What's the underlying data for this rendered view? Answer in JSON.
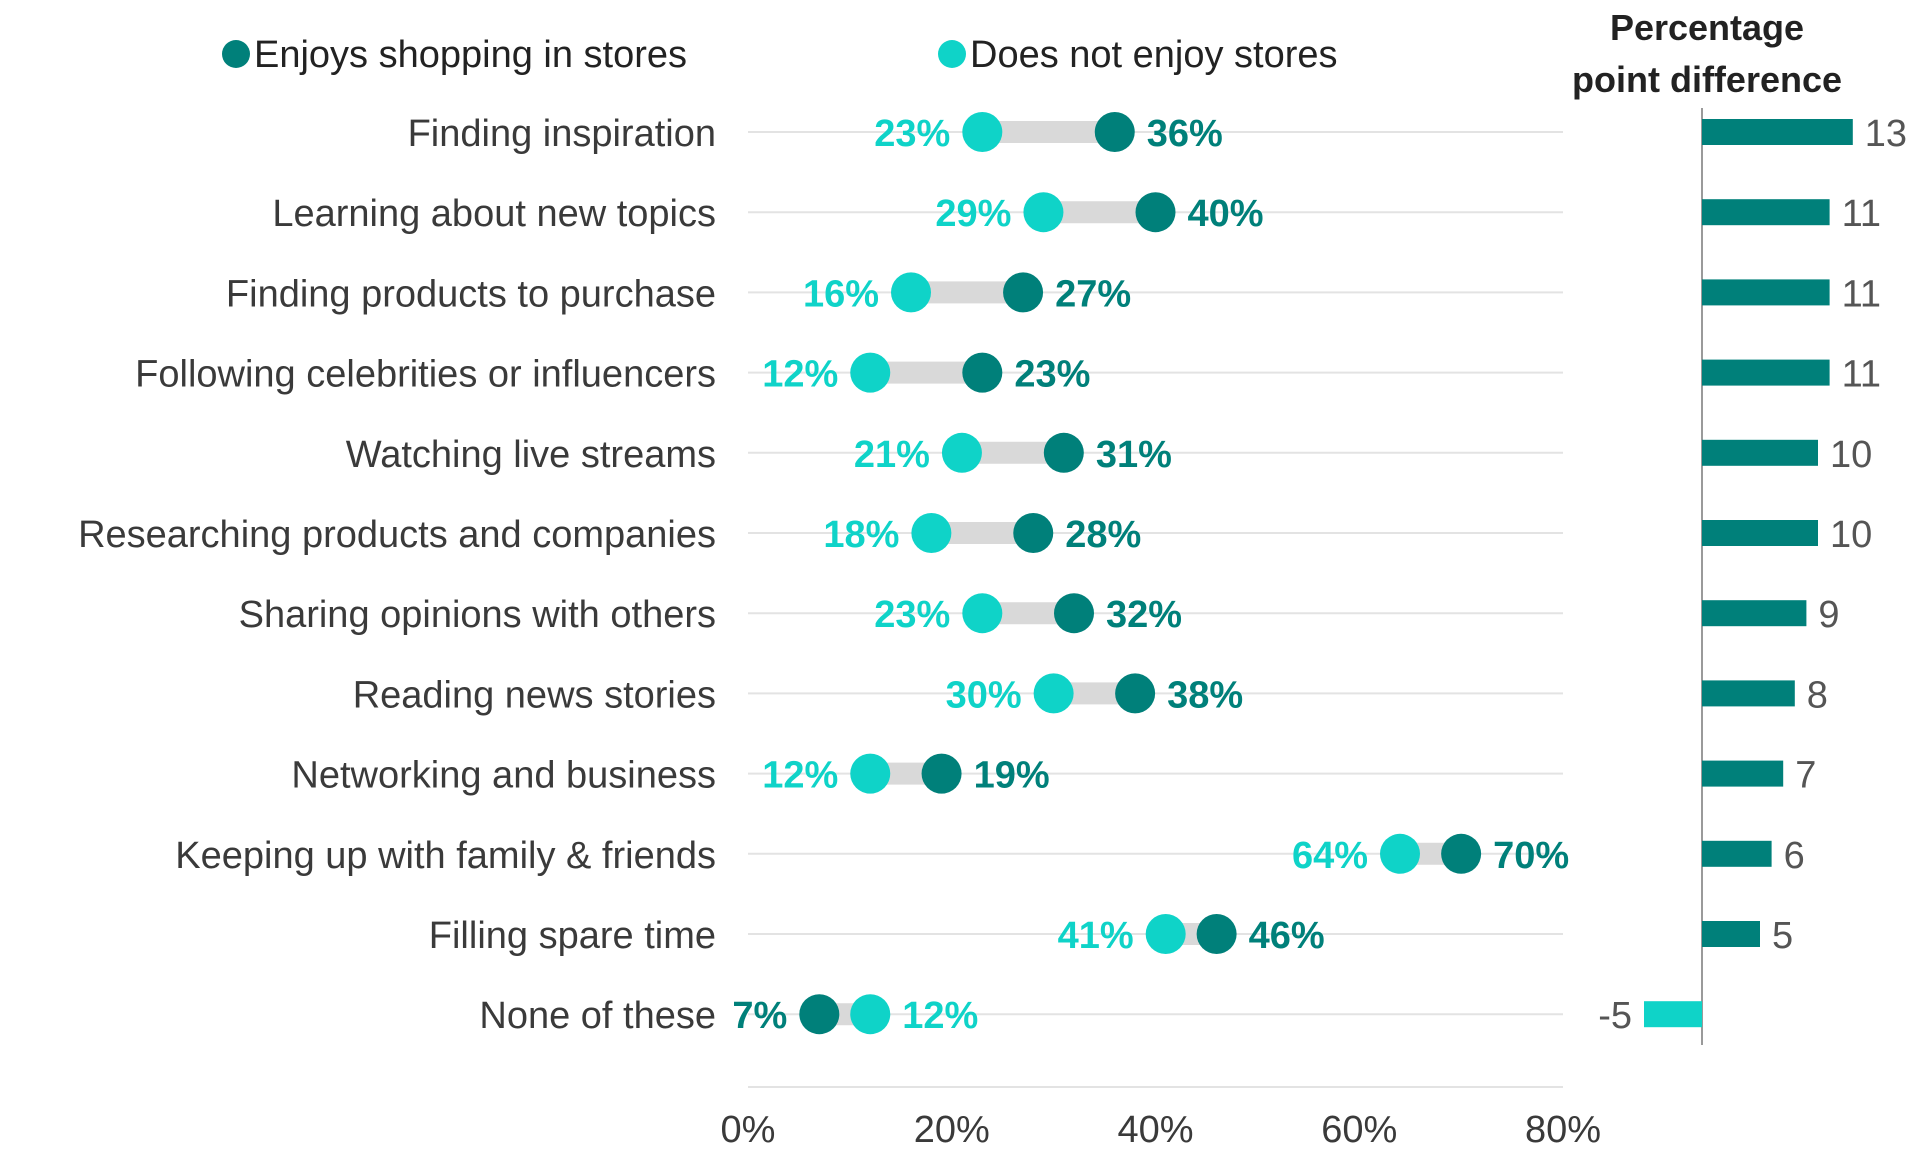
{
  "chart_data": {
    "type": "dumbbell",
    "legend": {
      "position": "top",
      "series": [
        {
          "name": "Enjoys shopping in stores",
          "color": "#00807a"
        },
        {
          "name": "Does not enjoy stores",
          "color": "#0fd3c8"
        }
      ]
    },
    "xlim": [
      0,
      80
    ],
    "x_ticks": [
      "0%",
      "20%",
      "40%",
      "60%",
      "80%"
    ],
    "x_tick_values": [
      0,
      20,
      40,
      60,
      80
    ],
    "rows": [
      {
        "category": "Finding inspiration",
        "enjoys": 36,
        "not_enjoy": 23,
        "enjoys_label": "36%",
        "not_enjoy_label": "23%",
        "diff": 13,
        "diff_label": "13"
      },
      {
        "category": "Learning about new topics",
        "enjoys": 40,
        "not_enjoy": 29,
        "enjoys_label": "40%",
        "not_enjoy_label": "29%",
        "diff": 11,
        "diff_label": "11"
      },
      {
        "category": "Finding products to purchase",
        "enjoys": 27,
        "not_enjoy": 16,
        "enjoys_label": "27%",
        "not_enjoy_label": "16%",
        "diff": 11,
        "diff_label": "11"
      },
      {
        "category": "Following celebrities or influencers",
        "enjoys": 23,
        "not_enjoy": 12,
        "enjoys_label": "23%",
        "not_enjoy_label": "12%",
        "diff": 11,
        "diff_label": "11"
      },
      {
        "category": "Watching live streams",
        "enjoys": 31,
        "not_enjoy": 21,
        "enjoys_label": "31%",
        "not_enjoy_label": "21%",
        "diff": 10,
        "diff_label": "10"
      },
      {
        "category": "Researching products and companies",
        "enjoys": 28,
        "not_enjoy": 18,
        "enjoys_label": "28%",
        "not_enjoy_label": "18%",
        "diff": 10,
        "diff_label": "10"
      },
      {
        "category": "Sharing opinions with others",
        "enjoys": 32,
        "not_enjoy": 23,
        "enjoys_label": "32%",
        "not_enjoy_label": "23%",
        "diff": 9,
        "diff_label": "9"
      },
      {
        "category": "Reading news stories",
        "enjoys": 38,
        "not_enjoy": 30,
        "enjoys_label": "38%",
        "not_enjoy_label": "30%",
        "diff": 8,
        "diff_label": "8"
      },
      {
        "category": "Networking and business",
        "enjoys": 19,
        "not_enjoy": 12,
        "enjoys_label": "19%",
        "not_enjoy_label": "12%",
        "diff": 7,
        "diff_label": "7"
      },
      {
        "category": "Keeping up with family & friends",
        "enjoys": 70,
        "not_enjoy": 64,
        "enjoys_label": "70%",
        "not_enjoy_label": "64%",
        "diff": 6,
        "diff_label": "6"
      },
      {
        "category": "Filling spare time",
        "enjoys": 46,
        "not_enjoy": 41,
        "enjoys_label": "46%",
        "not_enjoy_label": "41%",
        "diff": 5,
        "diff_label": "5"
      },
      {
        "category": "None of these",
        "enjoys": 7,
        "not_enjoy": 12,
        "enjoys_label": "7%",
        "not_enjoy_label": "12%",
        "diff": -5,
        "diff_label": "-5"
      }
    ],
    "difference_panel": {
      "title_lines": [
        "Percentage",
        "point difference"
      ],
      "positive_color": "#00807a",
      "negative_color": "#0fd3c8"
    },
    "colors": {
      "connector": "#d9d9d9",
      "gridline": "#e3e3e3",
      "axis": "#9a9a9a"
    }
  }
}
